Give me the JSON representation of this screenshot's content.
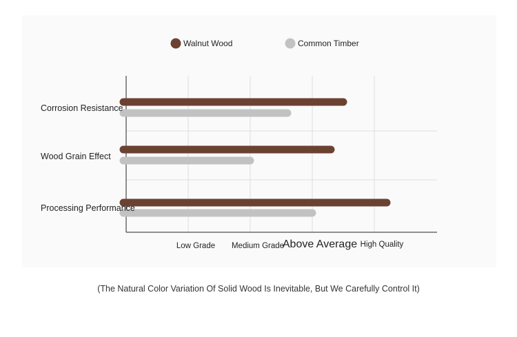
{
  "chart_data": {
    "type": "bar",
    "orientation": "horizontal",
    "categories": [
      "Corrosion Resistance",
      "Wood Grain Effect",
      "Processing Performance"
    ],
    "series": [
      {
        "name": "Walnut Wood",
        "color": "#6b4232",
        "values": [
          3.5,
          3.3,
          4.2
        ]
      },
      {
        "name": "Common Timber",
        "color": "#c2c2c2",
        "values": [
          2.6,
          2.0,
          3.0
        ]
      }
    ],
    "tick_labels": [
      "Low Grade",
      "Medium Grade",
      "Above Average",
      "High Quality"
    ],
    "tick_positions": [
      1,
      2,
      3,
      4
    ],
    "xlim": [
      0,
      5
    ],
    "legend_position": "top",
    "grid": true
  },
  "caption": "(The Natural Color Variation Of Solid Wood Is Inevitable, But We Carefully Control It)"
}
